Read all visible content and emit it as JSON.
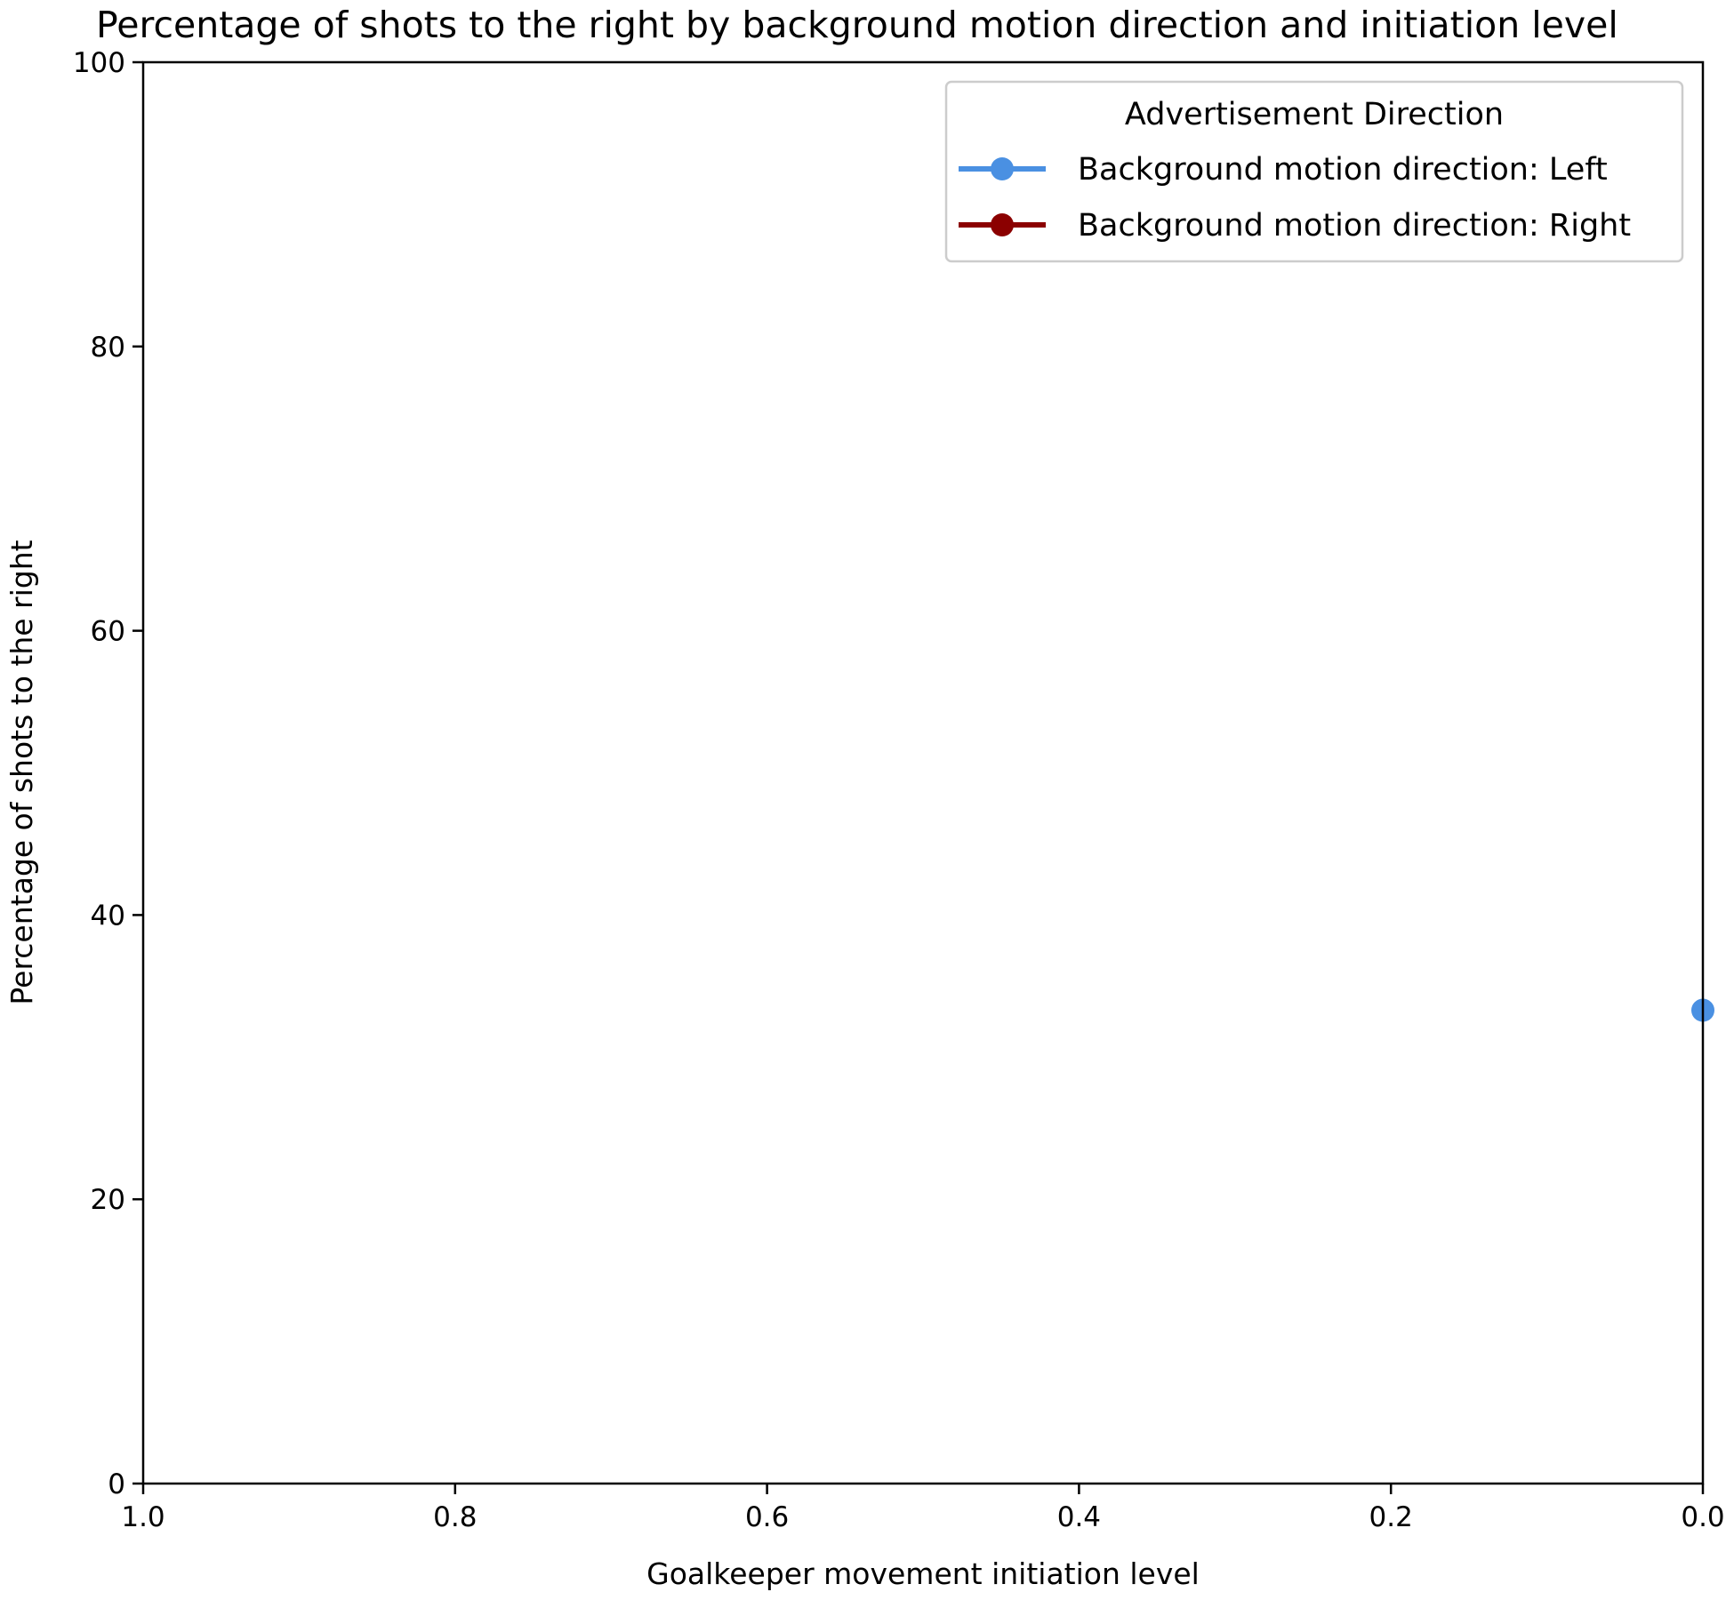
{
  "chart_data": {
    "type": "line",
    "title": "Percentage of shots to the right by background motion direction and initiation level",
    "xlabel": "Goalkeeper movement initiation level",
    "ylabel": "Percentage of shots to the right",
    "xlim": [
      1.0,
      0.0
    ],
    "ylim": [
      0,
      100
    ],
    "x_inverted": true,
    "xticks": [
      "1.0",
      "0.8",
      "0.6",
      "0.4",
      "0.2",
      "0.0"
    ],
    "xtick_values": [
      1.0,
      0.8,
      0.6,
      0.4,
      0.2,
      0.0
    ],
    "yticks": [
      "0",
      "20",
      "40",
      "60",
      "80",
      "100"
    ],
    "ytick_values": [
      0,
      20,
      40,
      60,
      80,
      100
    ],
    "grid": false,
    "legend": {
      "title": "Advertisement Direction",
      "placement": "top-right"
    },
    "series": [
      {
        "name": "Background motion direction: Left",
        "color": "#4a90e2",
        "marker": "circle",
        "points": [
          {
            "x": 0.0,
            "y": 33.3
          }
        ]
      },
      {
        "name": "Background motion direction: Right",
        "color": "#8b0000",
        "marker": "circle",
        "points": []
      }
    ]
  }
}
